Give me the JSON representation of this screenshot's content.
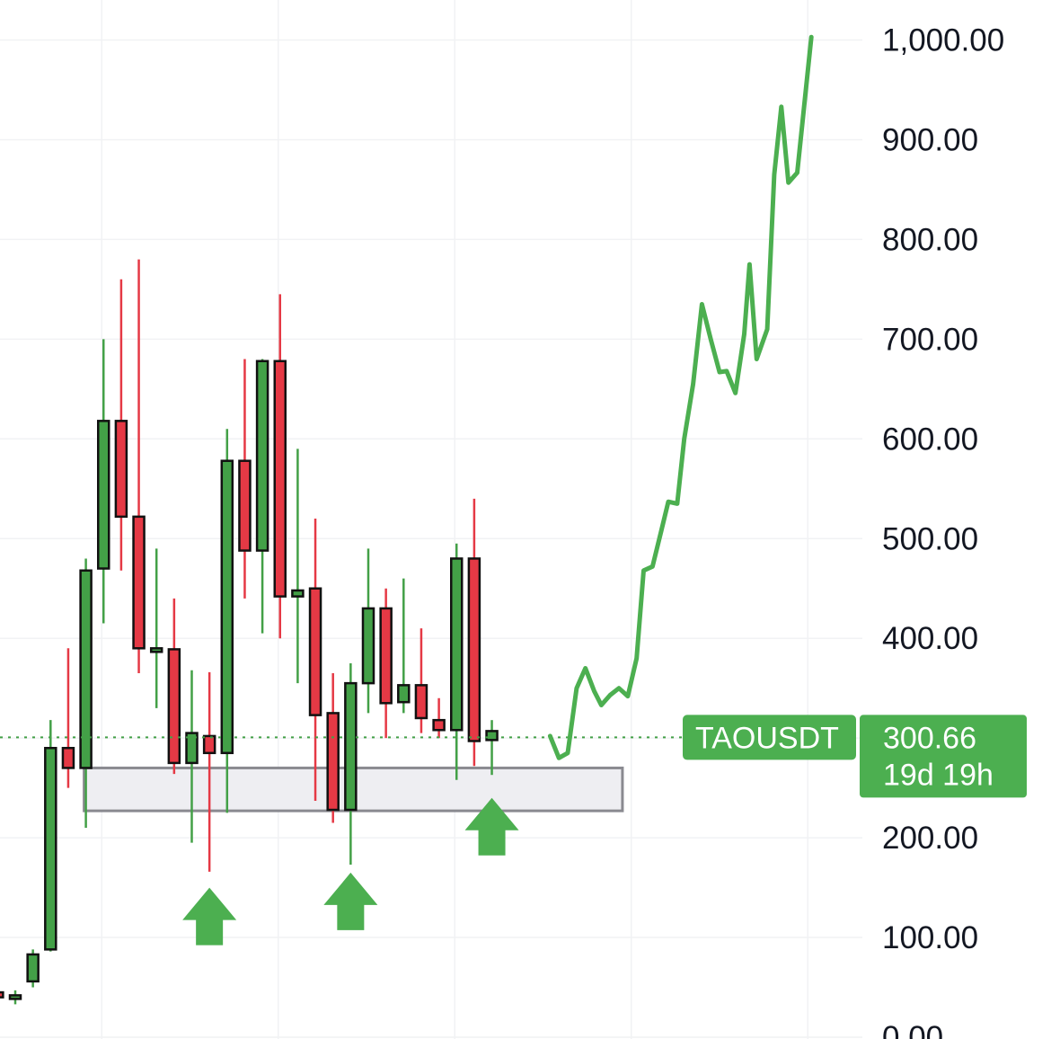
{
  "colors": {
    "up": "#43a047",
    "down": "#e53945",
    "projection": "#4caf50",
    "label_bg": "#4caf50",
    "zone_fill": "#eeeef2",
    "zone_stroke": "#8a8a90",
    "grid": "#f1f2f4",
    "axis_text": "#131722",
    "arrow": "#4caf50"
  },
  "chart_data": {
    "type": "candlestick",
    "symbol": "TAOUSDT",
    "last_price": 300.66,
    "last_price_label": "300.66",
    "countdown_label": "19d 19h",
    "y_axis": {
      "ticks": [
        0,
        100,
        200,
        300,
        400,
        500,
        600,
        700,
        800,
        900,
        1000
      ],
      "tick_labels": [
        "0.00",
        "100.00",
        "200.00",
        "300.00",
        "400.00",
        "500.00",
        "600.00",
        "700.00",
        "800.00",
        "900.00",
        "1,000.00"
      ],
      "range": [
        0,
        1000
      ]
    },
    "grid": true,
    "candles": [
      {
        "i": -1,
        "o": 45,
        "h": 55,
        "l": 40,
        "c": 40
      },
      {
        "i": 0,
        "o": 41,
        "h": 47,
        "l": 33,
        "c": 42
      },
      {
        "i": 1,
        "o": 56,
        "h": 88,
        "l": 50,
        "c": 83
      },
      {
        "i": 2,
        "o": 88,
        "h": 318,
        "l": 86,
        "c": 290
      },
      {
        "i": 3,
        "o": 290,
        "h": 390,
        "l": 250,
        "c": 270
      },
      {
        "i": 4,
        "o": 270,
        "h": 480,
        "l": 210,
        "c": 468
      },
      {
        "i": 5,
        "o": 470,
        "h": 700,
        "l": 415,
        "c": 618
      },
      {
        "i": 6,
        "o": 618,
        "h": 760,
        "l": 468,
        "c": 522
      },
      {
        "i": 7,
        "o": 522,
        "h": 780,
        "l": 365,
        "c": 390
      },
      {
        "i": 8,
        "o": 390,
        "h": 490,
        "l": 330,
        "c": 390
      },
      {
        "i": 9,
        "o": 389,
        "h": 440,
        "l": 264,
        "c": 275
      },
      {
        "i": 10,
        "o": 275,
        "h": 368,
        "l": 195,
        "c": 305
      },
      {
        "i": 11,
        "o": 302,
        "h": 366,
        "l": 166,
        "c": 285
      },
      {
        "i": 12,
        "o": 285,
        "h": 610,
        "l": 225,
        "c": 578
      },
      {
        "i": 13,
        "o": 578,
        "h": 680,
        "l": 440,
        "c": 488
      },
      {
        "i": 14,
        "o": 488,
        "h": 680,
        "l": 405,
        "c": 678
      },
      {
        "i": 15,
        "o": 678,
        "h": 745,
        "l": 400,
        "c": 442
      },
      {
        "i": 16,
        "o": 442,
        "h": 590,
        "l": 355,
        "c": 448
      },
      {
        "i": 17,
        "o": 450,
        "h": 520,
        "l": 237,
        "c": 323
      },
      {
        "i": 18,
        "o": 325,
        "h": 365,
        "l": 215,
        "c": 228
      },
      {
        "i": 19,
        "o": 228,
        "h": 375,
        "l": 173,
        "c": 355
      },
      {
        "i": 20,
        "o": 355,
        "h": 490,
        "l": 325,
        "c": 430
      },
      {
        "i": 21,
        "o": 430,
        "h": 450,
        "l": 300,
        "c": 335
      },
      {
        "i": 22,
        "o": 336,
        "h": 460,
        "l": 325,
        "c": 353
      },
      {
        "i": 23,
        "o": 353,
        "h": 410,
        "l": 305,
        "c": 320
      },
      {
        "i": 24,
        "o": 318,
        "h": 340,
        "l": 300,
        "c": 308
      },
      {
        "i": 25,
        "o": 308,
        "h": 495,
        "l": 258,
        "c": 480
      },
      {
        "i": 26,
        "o": 480,
        "h": 540,
        "l": 272,
        "c": 297
      },
      {
        "i": 27,
        "o": 298,
        "h": 318,
        "l": 263,
        "c": 307
      }
    ],
    "support_zone": {
      "low": 227,
      "high": 270,
      "from_index": 4,
      "to_index": 34.5
    },
    "signal_arrows": [
      {
        "index": 11,
        "price": 150
      },
      {
        "index": 19,
        "price": 165
      },
      {
        "index": 27,
        "price": 240
      }
    ],
    "projection": [
      [
        30.3,
        302
      ],
      [
        30.8,
        280
      ],
      [
        31.3,
        285
      ],
      [
        31.8,
        350
      ],
      [
        32.3,
        370
      ],
      [
        32.8,
        347
      ],
      [
        33.2,
        333
      ],
      [
        33.7,
        343
      ],
      [
        34.2,
        350
      ],
      [
        34.7,
        342
      ],
      [
        35.2,
        380
      ],
      [
        35.6,
        468
      ],
      [
        36.1,
        472
      ],
      [
        36.6,
        508
      ],
      [
        37.0,
        537
      ],
      [
        37.5,
        535
      ],
      [
        37.9,
        600
      ],
      [
        38.4,
        655
      ],
      [
        38.9,
        735
      ],
      [
        39.4,
        700
      ],
      [
        39.9,
        667
      ],
      [
        40.3,
        668
      ],
      [
        40.8,
        646
      ],
      [
        41.3,
        705
      ],
      [
        41.6,
        775
      ],
      [
        42.0,
        680
      ],
      [
        42.6,
        710
      ],
      [
        43.0,
        865
      ],
      [
        43.4,
        933
      ],
      [
        43.8,
        857
      ],
      [
        44.3,
        867
      ],
      [
        45.1,
        1003
      ]
    ]
  }
}
